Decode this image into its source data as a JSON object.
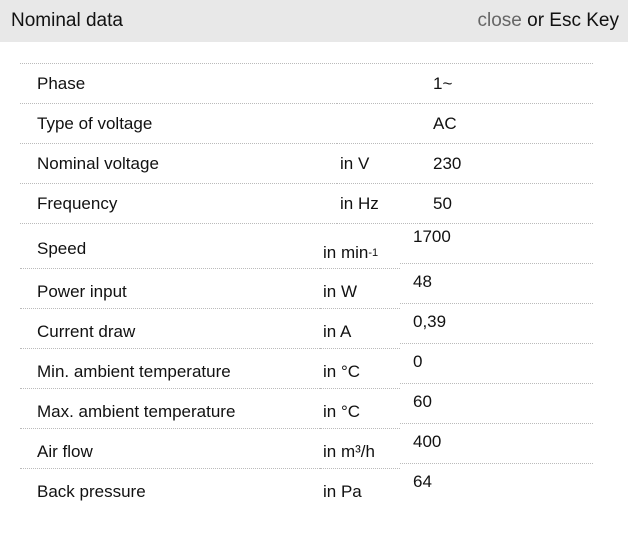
{
  "header": {
    "title": "Nominal data",
    "close_label": "close",
    "close_suffix": " or Esc Key"
  },
  "rows": [
    {
      "label": "Phase",
      "unit": "",
      "value": "1~"
    },
    {
      "label": "Type of voltage",
      "unit": "",
      "value": "AC"
    },
    {
      "label": "Nominal voltage",
      "unit": "in V",
      "value": "230"
    },
    {
      "label": "Frequency",
      "unit": "in Hz",
      "value": "50"
    },
    {
      "label": "Speed",
      "unit": "in min",
      "unit_sup": "-1",
      "value": "1700"
    },
    {
      "label": "Power input",
      "unit": "in W",
      "value": "48"
    },
    {
      "label": "Current draw",
      "unit": "in A",
      "value": "0,39"
    },
    {
      "label": "Min. ambient temperature",
      "unit": "in °C",
      "value": "0"
    },
    {
      "label": "Max. ambient temperature",
      "unit": "in °C",
      "value": "60"
    },
    {
      "label": "Air flow",
      "unit": "in m³/h",
      "value": "400"
    },
    {
      "label": "Back pressure",
      "unit": "in Pa",
      "value": "64"
    }
  ]
}
